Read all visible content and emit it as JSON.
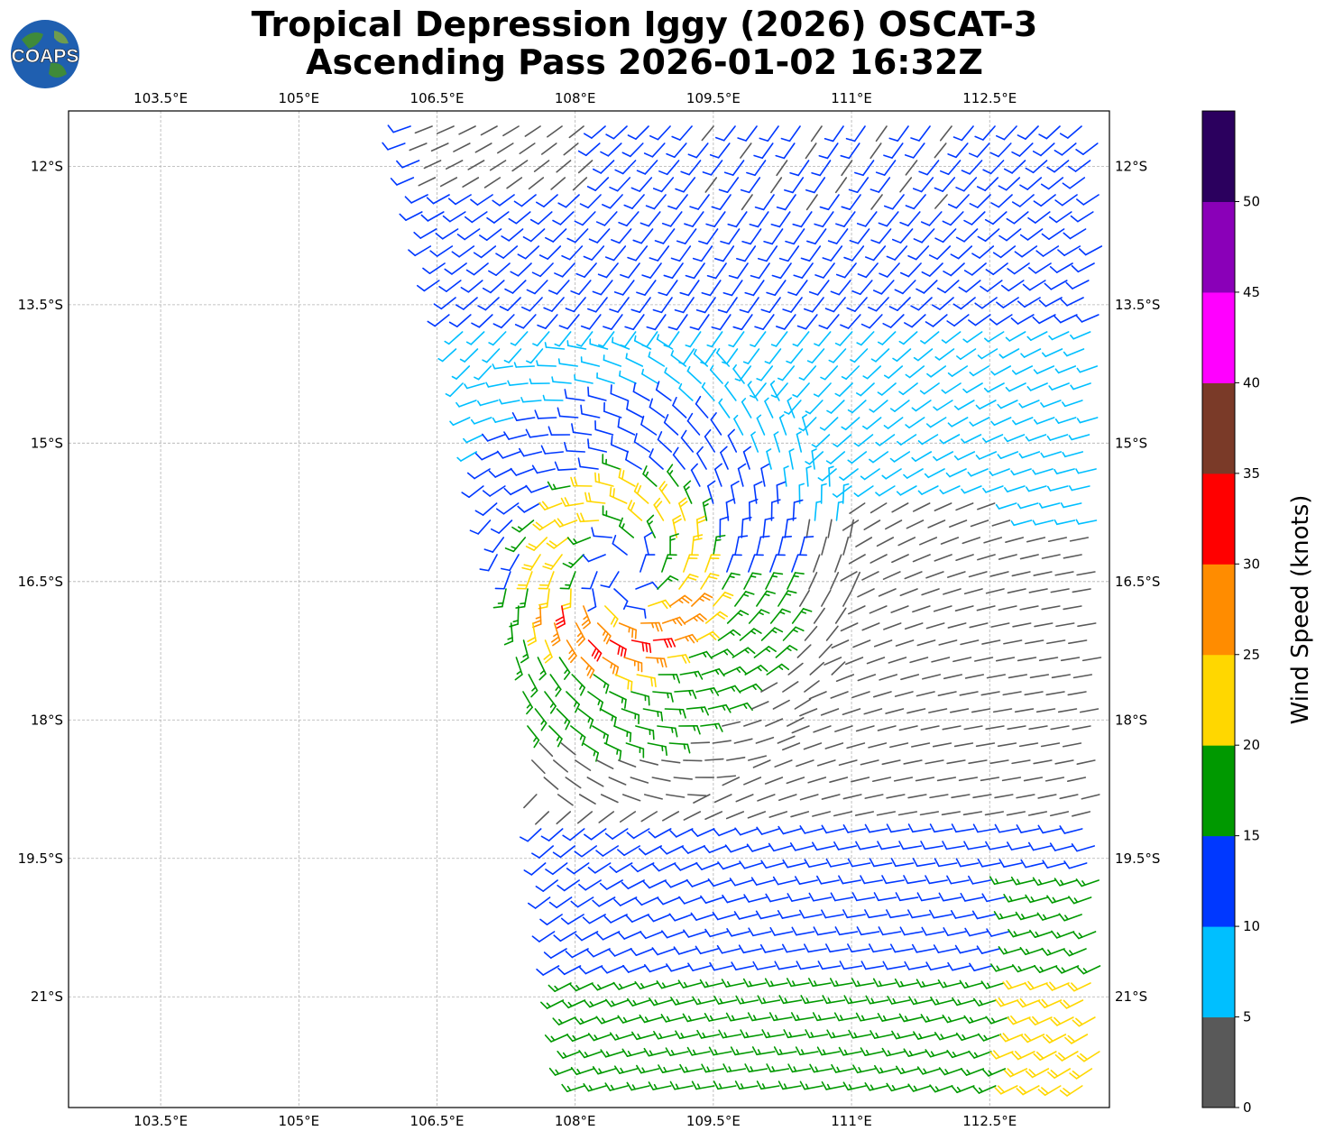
{
  "logo": {
    "text": "COAPS",
    "icon": "globe-logo-icon"
  },
  "chart_data": {
    "type": "wind-barb-map",
    "title": "Tropical Depression Iggy (2026) OSCAT-3",
    "subtitle": "Ascending Pass 2026-01-02 16:32Z",
    "lon_range": [
      102.5,
      113.8
    ],
    "lat_range": [
      -11.4,
      -22.2
    ],
    "lon_ticks": [
      "103.5°E",
      "105°E",
      "106.5°E",
      "108°E",
      "109.5°E",
      "111°E",
      "112.5°E"
    ],
    "lon_tick_values": [
      103.5,
      105,
      106.5,
      108,
      109.5,
      111,
      112.5
    ],
    "lat_ticks": [
      "12°S",
      "13.5°S",
      "15°S",
      "16.5°S",
      "18°S",
      "19.5°S",
      "21°S"
    ],
    "lat_tick_values": [
      -12,
      -13.5,
      -15,
      -16.5,
      -18,
      -19.5,
      -21
    ],
    "grid": true,
    "center": {
      "lon": 108.5,
      "lat": -16.4
    },
    "colorbar": {
      "label": "Wind Speed (knots)",
      "bounds": [
        0,
        5,
        10,
        15,
        20,
        25,
        30,
        35,
        40,
        45,
        50,
        55
      ],
      "tick_labels": [
        "0",
        "5",
        "10",
        "15",
        "20",
        "25",
        "30",
        "35",
        "40",
        "45",
        "50"
      ],
      "colors": [
        "#595959",
        "#00bfff",
        "#0038ff",
        "#009900",
        "#ffd700",
        "#ff8c00",
        "#ff0000",
        "#7a3a28",
        "#ff00ff",
        "#8a00b8",
        "#2b005e"
      ]
    }
  }
}
